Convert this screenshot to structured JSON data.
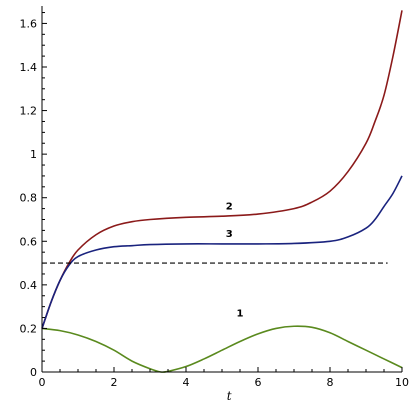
{
  "chart_data": {
    "type": "line",
    "xlabel": "t",
    "ylabel": "",
    "xlim": [
      0,
      10
    ],
    "ylim": [
      0,
      1.68
    ],
    "grid": false,
    "x_ticks": [
      "0",
      "2",
      "4",
      "6",
      "8",
      "10"
    ],
    "y_ticks": [
      "0",
      "0.2",
      "0.4",
      "0.6",
      "0.8",
      "1",
      "1.2",
      "1.4",
      "1.6"
    ],
    "series": [
      {
        "label": "1",
        "color": "#5a8a1e",
        "x": [
          0,
          0.5,
          1,
          1.5,
          2,
          2.5,
          3,
          3.3,
          3.5,
          4,
          4.5,
          5,
          5.5,
          6,
          6.5,
          7,
          7.5,
          8,
          8.5,
          9,
          9.5,
          10
        ],
        "y": [
          0.2,
          0.19,
          0.17,
          0.14,
          0.1,
          0.05,
          0.015,
          0.0,
          0.003,
          0.025,
          0.06,
          0.1,
          0.14,
          0.175,
          0.2,
          0.21,
          0.205,
          0.18,
          0.14,
          0.1,
          0.06,
          0.02
        ]
      },
      {
        "label": "2",
        "color": "#8b1a1a",
        "x": [
          0,
          0.25,
          0.5,
          0.75,
          1,
          1.5,
          2,
          2.5,
          3,
          4,
          5,
          6,
          7,
          7.5,
          8,
          8.5,
          9,
          9.25,
          9.5,
          9.75,
          10
        ],
        "y": [
          0.2,
          0.32,
          0.42,
          0.5,
          0.56,
          0.63,
          0.67,
          0.69,
          0.7,
          0.71,
          0.715,
          0.725,
          0.75,
          0.78,
          0.83,
          0.92,
          1.05,
          1.15,
          1.27,
          1.45,
          1.66
        ]
      },
      {
        "label": "3",
        "color": "#1a237e",
        "x": [
          0,
          0.25,
          0.5,
          0.75,
          1,
          1.5,
          2,
          2.5,
          3,
          4,
          5,
          6,
          7,
          8,
          8.5,
          9,
          9.25,
          9.5,
          9.75,
          10
        ],
        "y": [
          0.2,
          0.32,
          0.42,
          0.49,
          0.53,
          0.56,
          0.575,
          0.58,
          0.585,
          0.588,
          0.588,
          0.588,
          0.59,
          0.6,
          0.62,
          0.66,
          0.7,
          0.76,
          0.82,
          0.9
        ]
      }
    ],
    "reference_line": {
      "y": 0.5,
      "x_range": [
        0,
        9.6
      ],
      "style": "dashed",
      "color": "#000000"
    }
  }
}
